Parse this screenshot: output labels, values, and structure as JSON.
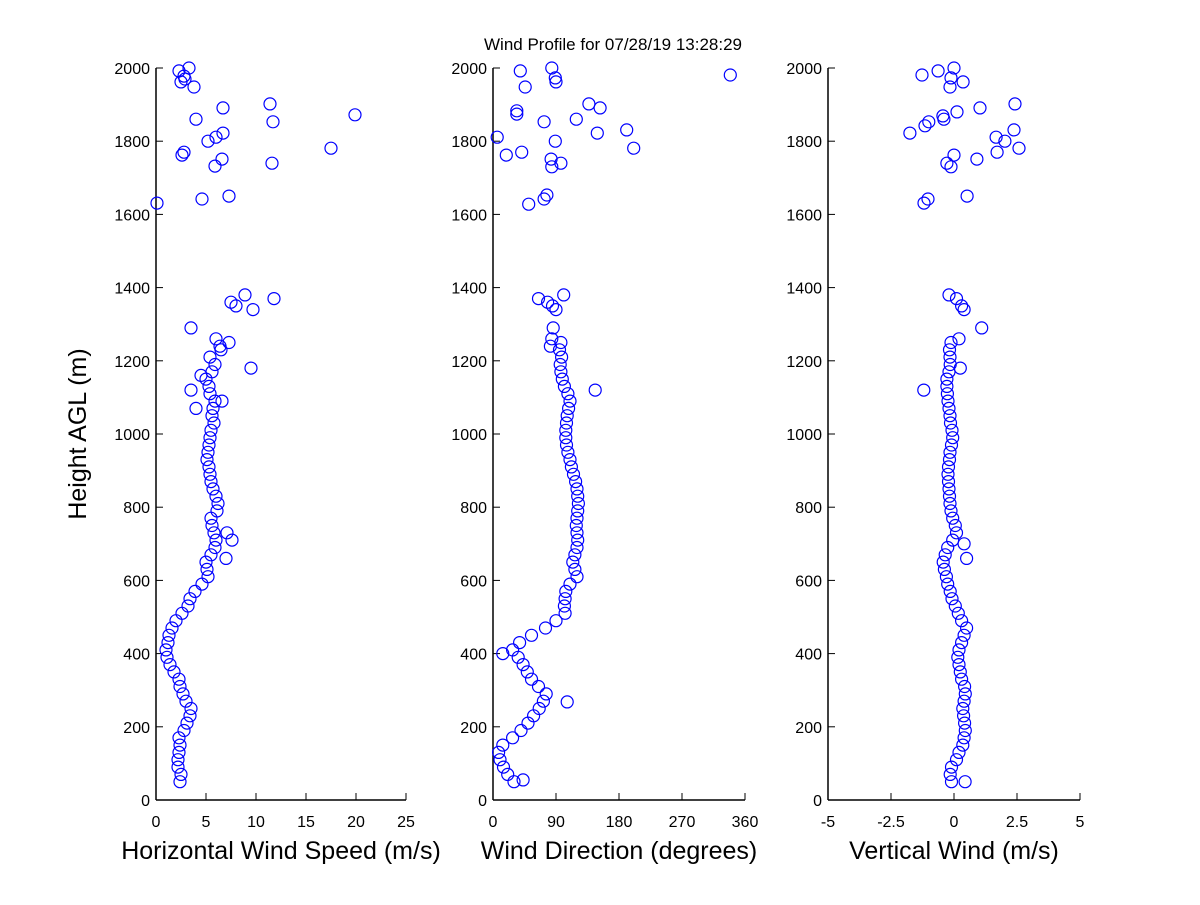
{
  "title": "Wind Profile for  07/28/19 13:28:29",
  "marker_color": "#0000ff",
  "chart_data": [
    {
      "type": "scatter",
      "xlabel": "Horizontal Wind Speed (m/s)",
      "ylabel": "Height AGL (m)",
      "xlim": [
        0,
        25
      ],
      "ylim": [
        0,
        2000
      ],
      "xticks": [
        "0",
        "5",
        "10",
        "15",
        "20",
        "25"
      ],
      "xtick_values": [
        0,
        5,
        10,
        15,
        20,
        25
      ],
      "yticks": [
        "0",
        "200",
        "400",
        "600",
        "800",
        "1000",
        "1200",
        "1400",
        "1600",
        "1800",
        "2000"
      ],
      "grid": false,
      "marker": "open-circle",
      "points": [
        [
          2.4,
          50
        ],
        [
          2.5,
          70
        ],
        [
          2.2,
          90
        ],
        [
          2.2,
          110
        ],
        [
          2.3,
          130
        ],
        [
          2.4,
          150
        ],
        [
          2.3,
          170
        ],
        [
          2.8,
          190
        ],
        [
          3.1,
          210
        ],
        [
          3.4,
          230
        ],
        [
          3.5,
          250
        ],
        [
          3.0,
          270
        ],
        [
          2.7,
          290
        ],
        [
          2.4,
          310
        ],
        [
          2.3,
          330
        ],
        [
          1.8,
          350
        ],
        [
          1.4,
          370
        ],
        [
          1.1,
          390
        ],
        [
          1.0,
          410
        ],
        [
          1.2,
          430
        ],
        [
          1.3,
          450
        ],
        [
          1.6,
          470
        ],
        [
          2.0,
          490
        ],
        [
          2.6,
          510
        ],
        [
          3.2,
          530
        ],
        [
          3.4,
          550
        ],
        [
          3.9,
          570
        ],
        [
          4.6,
          590
        ],
        [
          5.2,
          610
        ],
        [
          5.1,
          630
        ],
        [
          5.0,
          650
        ],
        [
          5.5,
          670
        ],
        [
          5.9,
          690
        ],
        [
          6.0,
          710
        ],
        [
          5.8,
          730
        ],
        [
          5.6,
          750
        ],
        [
          5.5,
          770
        ],
        [
          6.1,
          790
        ],
        [
          6.2,
          810
        ],
        [
          6.0,
          830
        ],
        [
          5.7,
          850
        ],
        [
          5.5,
          870
        ],
        [
          5.4,
          890
        ],
        [
          5.3,
          910
        ],
        [
          5.1,
          930
        ],
        [
          5.2,
          950
        ],
        [
          5.3,
          970
        ],
        [
          5.4,
          990
        ],
        [
          5.5,
          1010
        ],
        [
          5.8,
          1030
        ],
        [
          5.6,
          1050
        ],
        [
          5.7,
          1070
        ],
        [
          5.9,
          1090
        ],
        [
          5.4,
          1110
        ],
        [
          5.3,
          1130
        ],
        [
          5.0,
          1150
        ],
        [
          5.6,
          1170
        ],
        [
          5.9,
          1190
        ],
        [
          5.4,
          1210
        ],
        [
          6.5,
          1230
        ],
        [
          7.3,
          1250
        ],
        [
          7.0,
          660
        ],
        [
          7.6,
          710
        ],
        [
          7.1,
          730
        ],
        [
          3.5,
          1120
        ],
        [
          4.0,
          1070
        ],
        [
          6.6,
          1090
        ],
        [
          9.5,
          1180
        ],
        [
          4.5,
          1160
        ],
        [
          3.5,
          1290
        ],
        [
          7.5,
          1360
        ],
        [
          8.0,
          1350
        ],
        [
          8.9,
          1380
        ],
        [
          9.7,
          1340
        ],
        [
          11.8,
          1370
        ],
        [
          6.4,
          1240
        ],
        [
          6.0,
          1260
        ],
        [
          2.3,
          1992
        ],
        [
          3.3,
          2000
        ],
        [
          2.8,
          1978
        ],
        [
          2.9,
          1970
        ],
        [
          2.5,
          1962
        ],
        [
          3.8,
          1948
        ],
        [
          6.7,
          1891
        ],
        [
          11.4,
          1902
        ],
        [
          19.9,
          1872
        ],
        [
          4.0,
          1860
        ],
        [
          11.7,
          1853
        ],
        [
          6.7,
          1822
        ],
        [
          6.0,
          1811
        ],
        [
          5.2,
          1800
        ],
        [
          17.5,
          1781
        ],
        [
          2.8,
          1770
        ],
        [
          2.6,
          1762
        ],
        [
          6.6,
          1751
        ],
        [
          11.6,
          1740
        ],
        [
          5.9,
          1732
        ],
        [
          7.3,
          1650
        ],
        [
          4.6,
          1642
        ],
        [
          0.1,
          1631
        ]
      ]
    },
    {
      "type": "scatter",
      "xlabel": "Wind Direction (degrees)",
      "xlim": [
        0,
        360
      ],
      "ylim": [
        0,
        2000
      ],
      "xticks": [
        "0",
        "90",
        "180",
        "270",
        "360"
      ],
      "xtick_values": [
        0,
        90,
        180,
        270,
        360
      ],
      "yticks": [
        "0",
        "200",
        "400",
        "600",
        "800",
        "1000",
        "1200",
        "1400",
        "1600",
        "1800",
        "2000"
      ],
      "grid": false,
      "marker": "open-circle",
      "points": [
        [
          30,
          50
        ],
        [
          21,
          70
        ],
        [
          15,
          90
        ],
        [
          10,
          110
        ],
        [
          8,
          130
        ],
        [
          14,
          150
        ],
        [
          28,
          170
        ],
        [
          40,
          190
        ],
        [
          50,
          210
        ],
        [
          58,
          230
        ],
        [
          66,
          250
        ],
        [
          72,
          270
        ],
        [
          76,
          290
        ],
        [
          65,
          310
        ],
        [
          55,
          330
        ],
        [
          49,
          350
        ],
        [
          43,
          370
        ],
        [
          36,
          390
        ],
        [
          28,
          410
        ],
        [
          38,
          430
        ],
        [
          55,
          450
        ],
        [
          75,
          470
        ],
        [
          90,
          490
        ],
        [
          103,
          510
        ],
        [
          102,
          530
        ],
        [
          103,
          550
        ],
        [
          104,
          570
        ],
        [
          110,
          590
        ],
        [
          120,
          610
        ],
        [
          117,
          630
        ],
        [
          114,
          650
        ],
        [
          117,
          670
        ],
        [
          120,
          690
        ],
        [
          121,
          710
        ],
        [
          120,
          730
        ],
        [
          119,
          750
        ],
        [
          120,
          770
        ],
        [
          121,
          790
        ],
        [
          122,
          810
        ],
        [
          121,
          830
        ],
        [
          120,
          850
        ],
        [
          118,
          870
        ],
        [
          115,
          890
        ],
        [
          112,
          910
        ],
        [
          110,
          930
        ],
        [
          107,
          950
        ],
        [
          105,
          970
        ],
        [
          104,
          990
        ],
        [
          104,
          1010
        ],
        [
          105,
          1030
        ],
        [
          106,
          1050
        ],
        [
          108,
          1070
        ],
        [
          110,
          1090
        ],
        [
          107,
          1110
        ],
        [
          102,
          1130
        ],
        [
          99,
          1150
        ],
        [
          97,
          1170
        ],
        [
          96,
          1190
        ],
        [
          98,
          1210
        ],
        [
          95,
          1230
        ],
        [
          97,
          1250
        ],
        [
          43,
          55
        ],
        [
          14,
          400
        ],
        [
          146,
          1120
        ],
        [
          106,
          268
        ],
        [
          65,
          1370
        ],
        [
          78,
          1360
        ],
        [
          85,
          1350
        ],
        [
          90,
          1340
        ],
        [
          86,
          1290
        ],
        [
          84,
          1260
        ],
        [
          101,
          1380
        ],
        [
          82,
          1240
        ],
        [
          39,
          1992
        ],
        [
          84,
          2000
        ],
        [
          89,
          1973
        ],
        [
          90,
          1962
        ],
        [
          46,
          1948
        ],
        [
          339,
          1981
        ],
        [
          137,
          1902
        ],
        [
          153,
          1891
        ],
        [
          34,
          1883
        ],
        [
          34,
          1874
        ],
        [
          119,
          1860
        ],
        [
          73,
          1853
        ],
        [
          191,
          1831
        ],
        [
          149,
          1822
        ],
        [
          6,
          1811
        ],
        [
          89,
          1800
        ],
        [
          201,
          1781
        ],
        [
          41,
          1770
        ],
        [
          19,
          1762
        ],
        [
          83,
          1751
        ],
        [
          97,
          1740
        ],
        [
          84,
          1730
        ],
        [
          77,
          1653
        ],
        [
          73,
          1642
        ],
        [
          51,
          1628
        ]
      ]
    },
    {
      "type": "scatter",
      "xlabel": "Vertical Wind (m/s)",
      "xlim": [
        -5,
        5
      ],
      "ylim": [
        0,
        2000
      ],
      "xticks": [
        "-5",
        "-2.5",
        "0",
        "2.5",
        "5"
      ],
      "xtick_values": [
        -5,
        -2.5,
        0,
        2.5,
        5
      ],
      "yticks": [
        "0",
        "200",
        "400",
        "600",
        "800",
        "1000",
        "1200",
        "1400",
        "1600",
        "1800",
        "2000"
      ],
      "grid": false,
      "marker": "open-circle",
      "points": [
        [
          -0.1,
          50
        ],
        [
          -0.15,
          70
        ],
        [
          -0.1,
          90
        ],
        [
          0.1,
          110
        ],
        [
          0.2,
          130
        ],
        [
          0.35,
          150
        ],
        [
          0.4,
          170
        ],
        [
          0.45,
          190
        ],
        [
          0.42,
          210
        ],
        [
          0.38,
          230
        ],
        [
          0.35,
          250
        ],
        [
          0.4,
          270
        ],
        [
          0.45,
          290
        ],
        [
          0.42,
          310
        ],
        [
          0.3,
          330
        ],
        [
          0.25,
          350
        ],
        [
          0.2,
          370
        ],
        [
          0.15,
          390
        ],
        [
          0.2,
          410
        ],
        [
          0.3,
          430
        ],
        [
          0.4,
          450
        ],
        [
          0.5,
          470
        ],
        [
          0.3,
          490
        ],
        [
          0.17,
          510
        ],
        [
          0.05,
          530
        ],
        [
          -0.08,
          550
        ],
        [
          -0.15,
          570
        ],
        [
          -0.25,
          590
        ],
        [
          -0.3,
          610
        ],
        [
          -0.38,
          630
        ],
        [
          -0.43,
          650
        ],
        [
          -0.35,
          670
        ],
        [
          -0.25,
          690
        ],
        [
          -0.05,
          710
        ],
        [
          0.1,
          730
        ],
        [
          0.05,
          750
        ],
        [
          -0.05,
          770
        ],
        [
          -0.12,
          790
        ],
        [
          -0.16,
          810
        ],
        [
          -0.18,
          830
        ],
        [
          -0.2,
          850
        ],
        [
          -0.22,
          870
        ],
        [
          -0.24,
          890
        ],
        [
          -0.22,
          910
        ],
        [
          -0.18,
          930
        ],
        [
          -0.16,
          950
        ],
        [
          -0.1,
          970
        ],
        [
          -0.05,
          990
        ],
        [
          -0.08,
          1010
        ],
        [
          -0.14,
          1030
        ],
        [
          -0.16,
          1050
        ],
        [
          -0.2,
          1070
        ],
        [
          -0.24,
          1090
        ],
        [
          -0.26,
          1110
        ],
        [
          -0.28,
          1130
        ],
        [
          -0.28,
          1150
        ],
        [
          -0.2,
          1170
        ],
        [
          -0.15,
          1190
        ],
        [
          -0.16,
          1210
        ],
        [
          -0.18,
          1230
        ],
        [
          -0.12,
          1250
        ],
        [
          0.44,
          50
        ],
        [
          -1.2,
          1120
        ],
        [
          1.1,
          1290
        ],
        [
          -0.2,
          1380
        ],
        [
          0.1,
          1370
        ],
        [
          0.3,
          1350
        ],
        [
          0.4,
          1340
        ],
        [
          0.2,
          1260
        ],
        [
          0.25,
          1180
        ],
        [
          0.5,
          660
        ],
        [
          0.4,
          700
        ],
        [
          -1.27,
          1981
        ],
        [
          -0.63,
          1992
        ],
        [
          0,
          2000
        ],
        [
          -0.12,
          1973
        ],
        [
          0.36,
          1962
        ],
        [
          -0.16,
          1948
        ],
        [
          2.42,
          1902
        ],
        [
          1.03,
          1891
        ],
        [
          0.12,
          1880
        ],
        [
          -0.44,
          1869
        ],
        [
          -0.4,
          1860
        ],
        [
          -1.0,
          1853
        ],
        [
          -1.15,
          1842
        ],
        [
          -1.75,
          1822
        ],
        [
          2.38,
          1831
        ],
        [
          1.67,
          1811
        ],
        [
          2.02,
          1800
        ],
        [
          2.58,
          1781
        ],
        [
          1.71,
          1770
        ],
        [
          0,
          1762
        ],
        [
          0.91,
          1751
        ],
        [
          -0.28,
          1740
        ],
        [
          -0.12,
          1730
        ],
        [
          0.52,
          1650
        ],
        [
          -1.03,
          1642
        ],
        [
          -1.19,
          1631
        ]
      ]
    }
  ]
}
